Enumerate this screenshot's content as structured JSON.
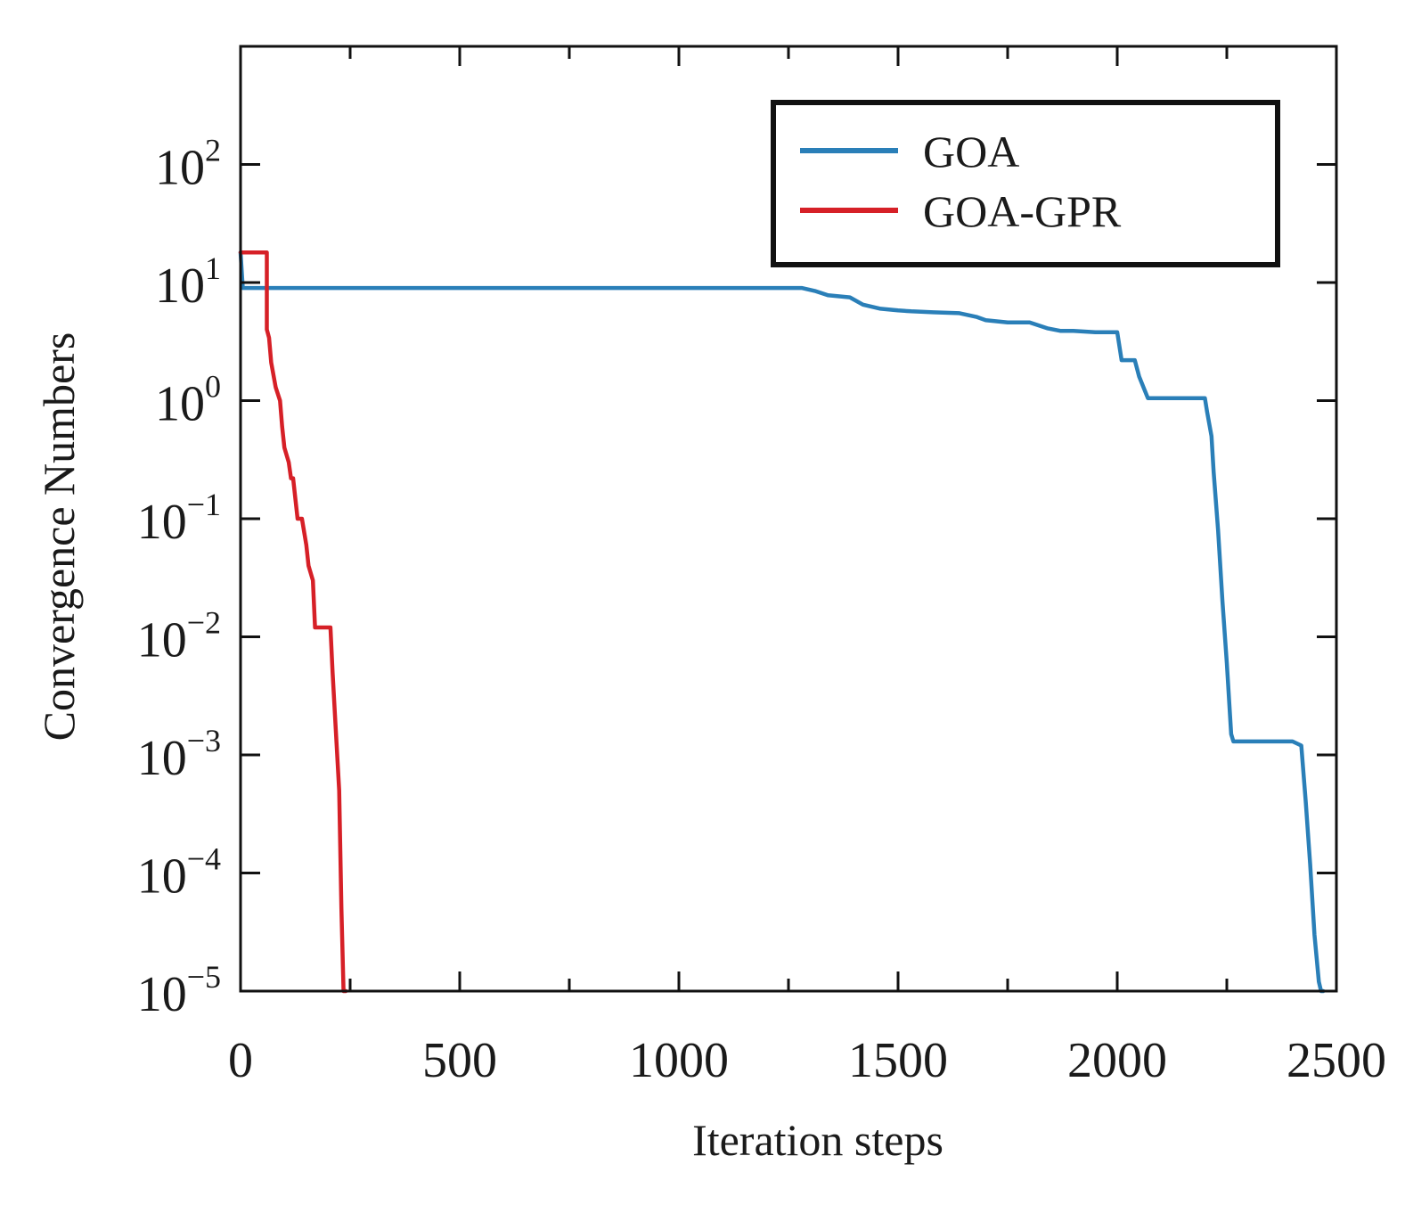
{
  "chart_data": {
    "type": "line",
    "title": "",
    "xlabel": "Iteration steps",
    "ylabel": "Convergence Numbers",
    "xlim": [
      0,
      2500
    ],
    "ylim": [
      1e-05,
      1000
    ],
    "yscale": "log",
    "x_ticks": [
      0,
      500,
      1000,
      1500,
      2000,
      2500
    ],
    "x_tick_labels": [
      "0",
      "500",
      "1000",
      "1500",
      "2000",
      "2500"
    ],
    "y_ticks": [
      {
        "value": 1e-05,
        "base": "10",
        "exp": "−5"
      },
      {
        "value": 0.0001,
        "base": "10",
        "exp": "−4"
      },
      {
        "value": 0.001,
        "base": "10",
        "exp": "−3"
      },
      {
        "value": 0.01,
        "base": "10",
        "exp": "−2"
      },
      {
        "value": 0.1,
        "base": "10",
        "exp": "−1"
      },
      {
        "value": 1,
        "base": "10",
        "exp": "0"
      },
      {
        "value": 10,
        "base": "10",
        "exp": "1"
      },
      {
        "value": 100,
        "base": "10",
        "exp": "2"
      }
    ],
    "grid": false,
    "legend_position": "top-right",
    "series": [
      {
        "name": "GOA",
        "color": "#2a7fb8",
        "x": [
          0,
          5,
          1280,
          1310,
          1340,
          1390,
          1420,
          1460,
          1500,
          1530,
          1580,
          1640,
          1680,
          1700,
          1750,
          1800,
          1840,
          1870,
          1900,
          1950,
          2000,
          2010,
          2040,
          2050,
          2070,
          2150,
          2200,
          2205,
          2215,
          2220,
          2230,
          2240,
          2250,
          2260,
          2265,
          2280,
          2300,
          2400,
          2420,
          2430,
          2440,
          2450,
          2460,
          2465,
          2470
        ],
        "y": [
          18,
          9,
          9,
          8.5,
          7.8,
          7.5,
          6.5,
          6,
          5.8,
          5.7,
          5.6,
          5.5,
          5.1,
          4.8,
          4.6,
          4.6,
          4.1,
          3.9,
          3.9,
          3.8,
          3.8,
          2.2,
          2.2,
          1.6,
          1.05,
          1.05,
          1.05,
          0.8,
          0.5,
          0.25,
          0.08,
          0.02,
          0.006,
          0.0015,
          0.0013,
          0.0013,
          0.0013,
          0.0013,
          0.0012,
          0.0004,
          0.00012,
          3e-05,
          1.2e-05,
          1e-05,
          1e-05
        ]
      },
      {
        "name": "GOA-GPR",
        "color": "#d62027",
        "x": [
          0,
          60,
          60,
          65,
          70,
          80,
          90,
          95,
          100,
          110,
          115,
          120,
          130,
          140,
          150,
          155,
          165,
          170,
          180,
          185,
          205,
          210,
          225,
          230,
          235,
          240
        ],
        "y": [
          18,
          18,
          4,
          3.4,
          2.1,
          1.3,
          1,
          0.6,
          0.4,
          0.3,
          0.22,
          0.22,
          0.1,
          0.1,
          0.06,
          0.04,
          0.03,
          0.012,
          0.012,
          0.012,
          0.012,
          0.005,
          0.0005,
          5e-05,
          1e-05,
          1e-05
        ]
      }
    ]
  }
}
